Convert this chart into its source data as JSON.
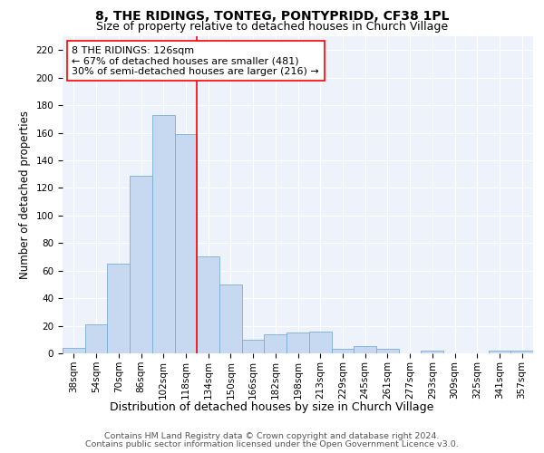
{
  "title1": "8, THE RIDINGS, TONTEG, PONTYPRIDD, CF38 1PL",
  "title2": "Size of property relative to detached houses in Church Village",
  "xlabel": "Distribution of detached houses by size in Church Village",
  "ylabel": "Number of detached properties",
  "bar_labels": [
    "38sqm",
    "54sqm",
    "70sqm",
    "86sqm",
    "102sqm",
    "118sqm",
    "134sqm",
    "150sqm",
    "166sqm",
    "182sqm",
    "198sqm",
    "213sqm",
    "229sqm",
    "245sqm",
    "261sqm",
    "277sqm",
    "293sqm",
    "309sqm",
    "325sqm",
    "341sqm",
    "357sqm"
  ],
  "bar_values": [
    4,
    21,
    65,
    129,
    173,
    159,
    70,
    50,
    10,
    14,
    15,
    16,
    3,
    5,
    3,
    0,
    2,
    0,
    0,
    2,
    2
  ],
  "bar_color": "#c6d9f0",
  "bar_edge_color": "#7aadd4",
  "vline_x": 5.5,
  "vline_color": "red",
  "annotation_line1": "8 THE RIDINGS: 126sqm",
  "annotation_line2": "← 67% of detached houses are smaller (481)",
  "annotation_line3": "30% of semi-detached houses are larger (216) →",
  "annotation_box_color": "white",
  "annotation_box_edge": "red",
  "ylim": [
    0,
    230
  ],
  "yticks": [
    0,
    20,
    40,
    60,
    80,
    100,
    120,
    140,
    160,
    180,
    200,
    220
  ],
  "footer1": "Contains HM Land Registry data © Crown copyright and database right 2024.",
  "footer2": "Contains public sector information licensed under the Open Government Licence v3.0.",
  "bg_color": "#eef2fa",
  "grid_color": "#ffffff",
  "title1_fontsize": 10,
  "title2_fontsize": 9,
  "xlabel_fontsize": 9,
  "ylabel_fontsize": 8.5,
  "tick_fontsize": 7.5,
  "annotation_fontsize": 8,
  "footer_fontsize": 6.8
}
